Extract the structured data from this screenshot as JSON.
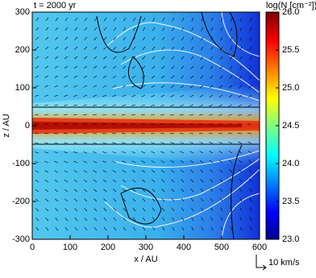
{
  "chart_data": {
    "type": "heatmap",
    "title": "t = 2000 yr",
    "x_label": "x / AU",
    "y_label": "z / AU",
    "colorbar_label": "log(N [cm⁻²])",
    "xlim": [
      0,
      600
    ],
    "xticks": [
      0,
      100,
      200,
      300,
      400,
      500,
      600
    ],
    "ylim": [
      -300,
      300
    ],
    "yticks": [
      -300,
      -200,
      -100,
      0,
      100,
      200,
      300
    ],
    "clim": [
      23.0,
      26.0
    ],
    "cticks": [
      {
        "value": 23.0,
        "label": "23.0"
      },
      {
        "value": 23.5,
        "label": "23.5"
      },
      {
        "value": 24.0,
        "label": "24.0"
      },
      {
        "value": 24.5,
        "label": "24.5"
      },
      {
        "value": 25.0,
        "label": "25.0"
      },
      {
        "value": 25.5,
        "label": "25.5"
      },
      {
        "value": 26.0,
        "label": "26.0"
      }
    ],
    "vector_scale_label": "10 km/s"
  }
}
